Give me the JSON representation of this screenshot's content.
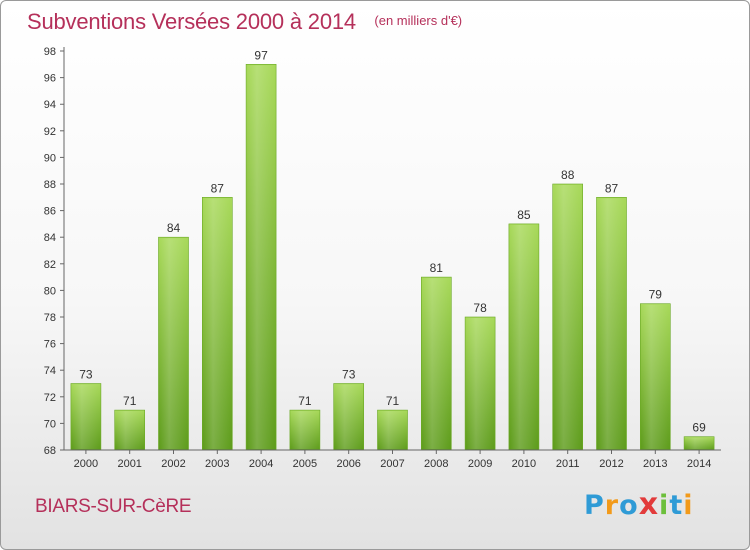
{
  "header": {
    "title": "Subventions Versées 2000 à 2014",
    "subtitle": "(en milliers d'€)"
  },
  "footer": {
    "commune": "BIARS-SUR-CèRE",
    "brand": {
      "letters": [
        "P",
        "r",
        "o",
        "x",
        "i",
        "t",
        "i"
      ],
      "colors": [
        "#2f9bd6",
        "#f29a1a",
        "#2f9bd6",
        "#e23b3b",
        "#6cbf3b",
        "#2f9bd6",
        "#f29a1a"
      ]
    }
  },
  "chart_data": {
    "type": "bar",
    "categories": [
      "2000",
      "2001",
      "2002",
      "2003",
      "2004",
      "2005",
      "2006",
      "2007",
      "2008",
      "2009",
      "2010",
      "2011",
      "2012",
      "2013",
      "2014"
    ],
    "values": [
      73,
      71,
      84,
      87,
      97,
      71,
      73,
      71,
      81,
      78,
      85,
      88,
      87,
      79,
      69
    ],
    "title": "Subventions Versées 2000 à 2014",
    "subtitle": "(en milliers d'€)",
    "xlabel": "",
    "ylabel": "",
    "ylim": [
      68,
      98
    ],
    "yticks": [
      68,
      70,
      72,
      74,
      76,
      78,
      80,
      82,
      84,
      86,
      88,
      90,
      92,
      94,
      96,
      98
    ],
    "grid": false,
    "data_labels": true,
    "bar_color": "#7cbd32",
    "bar_color_light": "#a8d95a",
    "bar_color_dark": "#5e9c1c",
    "text_color": "#b5305a"
  }
}
